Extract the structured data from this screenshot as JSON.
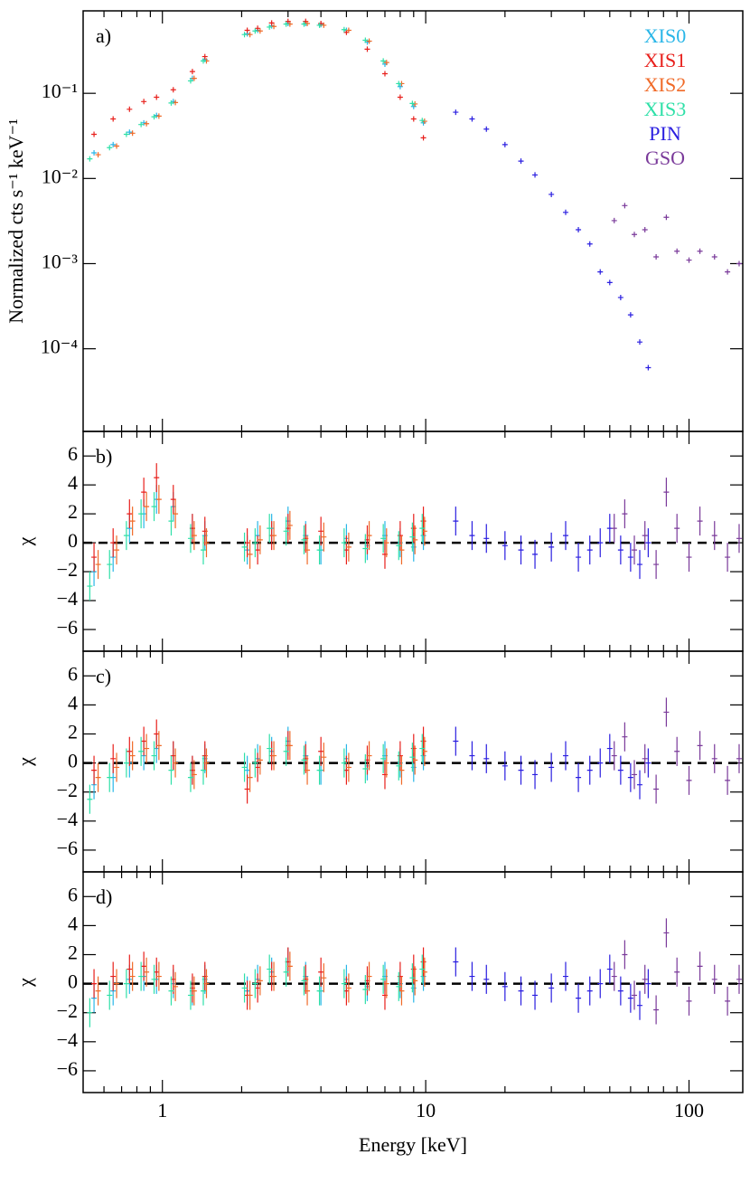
{
  "chart_data": {
    "type": "scatter",
    "xlabel": "Energy [keV]",
    "xlog": true,
    "xlim": [
      0.5,
      160
    ],
    "xticks": [
      1,
      10,
      100
    ],
    "xminor_ticks": [
      0.6,
      0.7,
      0.8,
      0.9,
      2,
      3,
      4,
      5,
      6,
      7,
      8,
      9,
      20,
      30,
      40,
      50,
      60,
      70,
      80,
      90
    ],
    "legend": "upper right",
    "panels": [
      {
        "label": "a)",
        "ylabel": "Normalized cts s⁻¹ keV⁻¹",
        "ylog": true,
        "ylim": [
          1.07e-05,
          0.93
        ],
        "yticks": [
          {
            "value": 0.1,
            "label": "10⁻¹"
          },
          {
            "value": 0.01,
            "label": "10⁻²"
          },
          {
            "value": 0.001,
            "label": "10⁻³"
          },
          {
            "value": 0.0001,
            "label": "10⁻⁴"
          }
        ]
      },
      {
        "label": "b)",
        "ylabel": "χ",
        "ylim": [
          -7.5,
          7.7
        ],
        "zero_line": true,
        "yticks": [
          {
            "value": -6,
            "label": "−6"
          },
          {
            "value": -4,
            "label": "−4"
          },
          {
            "value": -2,
            "label": "−2"
          },
          0,
          2,
          4,
          6
        ]
      },
      {
        "label": "c)",
        "ylabel": "χ",
        "ylim": [
          -7.5,
          7.7
        ],
        "zero_line": true,
        "yticks": [
          {
            "value": -6,
            "label": "−6"
          },
          {
            "value": -4,
            "label": "−4"
          },
          {
            "value": -2,
            "label": "−2"
          },
          0,
          2,
          4,
          6
        ]
      },
      {
        "label": "d)",
        "ylabel": "χ",
        "ylim": [
          -7.5,
          7.7
        ],
        "zero_line": true,
        "yticks": [
          {
            "value": -6,
            "label": "−6"
          },
          {
            "value": -4,
            "label": "−4"
          },
          {
            "value": -2,
            "label": "−2"
          },
          0,
          2,
          4,
          6
        ]
      }
    ],
    "series": [
      {
        "name": "XIS0",
        "color": "#29b6e8",
        "chi_err": 1,
        "x": [
          0.55,
          0.65,
          0.75,
          0.85,
          0.95,
          1.1,
          1.3,
          1.45,
          2.1,
          2.3,
          2.6,
          3.0,
          3.5,
          4.0,
          5.0,
          6.0,
          7.0,
          8.0,
          9.0,
          9.8
        ],
        "values": [
          0.02,
          0.025,
          0.035,
          0.045,
          0.055,
          0.08,
          0.15,
          0.25,
          0.5,
          0.55,
          0.62,
          0.66,
          0.66,
          0.64,
          0.55,
          0.4,
          0.22,
          0.12,
          0.07,
          0.045
        ],
        "chi": [
          [
            -2,
            -1,
            1,
            2,
            3,
            2.5,
            1,
            0.5,
            -0.5,
            0.5,
            1,
            1.5,
            0.5,
            -0.5,
            0.3,
            -0.2,
            0.5,
            0,
            -0.3,
            0.5
          ],
          [
            -1.5,
            -1,
            0,
            0.5,
            1,
            0.5,
            -0.5,
            0.3,
            -0.5,
            0.3,
            0.8,
            1.5,
            0.5,
            -0.5,
            0.3,
            -0.2,
            0.5,
            0,
            -0.3,
            0.5
          ],
          [
            -1,
            -0.5,
            0.3,
            0.5,
            0.3,
            0,
            -0.5,
            0.3,
            -0.5,
            0.3,
            0.8,
            1.5,
            0.5,
            -0.5,
            0.3,
            -0.2,
            0.5,
            0,
            -0.3,
            0.5
          ]
        ]
      },
      {
        "name": "XIS1",
        "color": "#e8201c",
        "chi_err": 1,
        "x": [
          0.55,
          0.65,
          0.75,
          0.85,
          0.95,
          1.1,
          1.3,
          1.45,
          2.1,
          2.3,
          2.6,
          3.0,
          3.5,
          4.0,
          5.0,
          6.0,
          7.0,
          8.0,
          9.0,
          9.8
        ],
        "values": [
          0.033,
          0.05,
          0.065,
          0.08,
          0.09,
          0.11,
          0.18,
          0.27,
          0.55,
          0.58,
          0.67,
          0.7,
          0.7,
          0.66,
          0.52,
          0.33,
          0.17,
          0.09,
          0.05,
          0.03
        ],
        "chi": [
          [
            -1,
            0,
            2,
            3.5,
            4.5,
            3,
            1,
            0.8,
            0,
            -0.5,
            0.5,
            1,
            0.3,
            0.8,
            -0.5,
            0.2,
            -0.8,
            0.5,
            1,
            1.5
          ],
          [
            -0.5,
            0.3,
            0.8,
            1.5,
            2,
            0.5,
            -0.5,
            0.5,
            -1.8,
            -0.3,
            0.5,
            1.2,
            0.3,
            0.8,
            -0.5,
            0.2,
            -0.8,
            0.5,
            1,
            1.5
          ],
          [
            0,
            0.5,
            1,
            1.2,
            0.8,
            0.3,
            -0.3,
            0.5,
            -0.8,
            -0.3,
            0.5,
            1.5,
            0.3,
            0.8,
            -0.5,
            0.2,
            -0.8,
            0.5,
            1,
            1.5
          ]
        ]
      },
      {
        "name": "XIS2",
        "color": "#f06a28",
        "chi_err": 1,
        "x": [
          0.57,
          0.67,
          0.77,
          0.87,
          0.97,
          1.12,
          1.32,
          1.47,
          2.15,
          2.35,
          2.65,
          3.05,
          3.55,
          4.1,
          5.1,
          6.1,
          7.1,
          8.1,
          9.1,
          9.9
        ],
        "values": [
          0.019,
          0.024,
          0.034,
          0.044,
          0.054,
          0.078,
          0.15,
          0.24,
          0.49,
          0.54,
          0.61,
          0.65,
          0.66,
          0.63,
          0.55,
          0.41,
          0.23,
          0.13,
          0.075,
          0.047
        ],
        "chi": [
          [
            -1.5,
            -0.5,
            1.5,
            2.5,
            3,
            2,
            0.5,
            0,
            -0.8,
            0.2,
            0.5,
            1.2,
            -0.5,
            0.4,
            -0.3,
            0.5,
            0,
            -0.5,
            0.2,
            0.8
          ],
          [
            -1,
            -0.3,
            0.5,
            1,
            1.2,
            0,
            -0.8,
            0,
            -1,
            0.2,
            0.5,
            1.2,
            -0.5,
            0.4,
            -0.3,
            0.5,
            0,
            -0.5,
            0.2,
            0.8
          ],
          [
            -0.5,
            0,
            0.5,
            0.8,
            0.5,
            -0.2,
            -0.5,
            0,
            -0.8,
            0.2,
            0.5,
            1.2,
            -0.5,
            0.4,
            -0.3,
            0.5,
            0,
            -0.5,
            0.2,
            0.8
          ]
        ]
      },
      {
        "name": "XIS3",
        "color": "#2ee0a8",
        "chi_err": 1,
        "x": [
          0.53,
          0.63,
          0.73,
          0.83,
          0.93,
          1.08,
          1.28,
          1.43,
          2.05,
          2.25,
          2.55,
          2.95,
          3.45,
          3.95,
          4.9,
          5.9,
          6.9,
          7.9,
          8.9,
          9.7
        ],
        "values": [
          0.017,
          0.023,
          0.033,
          0.043,
          0.053,
          0.077,
          0.14,
          0.24,
          0.49,
          0.54,
          0.6,
          0.65,
          0.65,
          0.63,
          0.56,
          0.42,
          0.24,
          0.13,
          0.076,
          0.048
        ],
        "chi": [
          [
            -3,
            -1.5,
            0.5,
            2,
            2.5,
            1.5,
            0.3,
            -0.5,
            -0.3,
            0,
            1,
            0.8,
            0.2,
            -0.5,
            0,
            -0.4,
            0.3,
            -0.2,
            0.4,
            1
          ],
          [
            -2.5,
            -1,
            0,
            0.8,
            0.5,
            -0.5,
            -1,
            -0.5,
            -0.3,
            0,
            1,
            0.8,
            0.2,
            -0.5,
            0,
            -0.4,
            0.3,
            -0.2,
            0.4,
            1
          ],
          [
            -2,
            -0.8,
            0,
            0.5,
            0.3,
            -0.5,
            -0.8,
            -0.5,
            -0.3,
            0,
            1,
            0.8,
            0.2,
            -0.5,
            0,
            -0.4,
            0.3,
            -0.2,
            0.4,
            1
          ]
        ]
      },
      {
        "name": "PIN",
        "color": "#2a1ee0",
        "chi_err": 1,
        "x": [
          13,
          15,
          17,
          20,
          23,
          26,
          30,
          34,
          38,
          42,
          46,
          50,
          55,
          60,
          65,
          70
        ],
        "values": [
          0.06,
          0.05,
          0.038,
          0.025,
          0.016,
          0.011,
          0.0065,
          0.004,
          0.0025,
          0.0017,
          0.0008,
          0.0006,
          0.0004,
          0.00025,
          0.00012,
          6e-05
        ],
        "chi": [
          [
            1.5,
            0.5,
            0.3,
            -0.2,
            -0.5,
            -0.8,
            -0.3,
            0.5,
            -1,
            -0.5,
            0,
            1,
            -0.5,
            -1,
            -1.5,
            0
          ],
          [
            1.5,
            0.5,
            0.3,
            -0.2,
            -0.5,
            -0.8,
            -0.3,
            0.5,
            -1,
            -0.5,
            0,
            1,
            -0.5,
            -1,
            -1.5,
            0
          ],
          [
            1.5,
            0.5,
            0.3,
            -0.2,
            -0.5,
            -0.8,
            -0.3,
            0.5,
            -1,
            -0.5,
            0,
            1,
            -0.5,
            -1,
            -1.5,
            0
          ]
        ]
      },
      {
        "name": "GSO",
        "color": "#7a3a9a",
        "chi_err": 1,
        "x": [
          52,
          57,
          62,
          68,
          75,
          82,
          90,
          100,
          110,
          125,
          140,
          155
        ],
        "values": [
          0.0032,
          0.0048,
          0.0022,
          0.0025,
          0.0012,
          0.0035,
          0.0014,
          0.0011,
          0.0014,
          0.0012,
          0.0008,
          0.001
        ],
        "chi": [
          [
            1,
            2,
            -0.5,
            0.5,
            -1.5,
            3.5,
            1,
            -1,
            1.5,
            0.5,
            -1,
            0.3
          ],
          [
            0.5,
            1.8,
            -0.8,
            0.3,
            -1.8,
            3.5,
            0.8,
            -1.2,
            1.2,
            0.3,
            -1.2,
            0.3
          ],
          [
            0.5,
            2,
            -0.8,
            0.3,
            -1.8,
            3.5,
            0.8,
            -1.2,
            1.2,
            0.3,
            -1.2,
            0.3
          ]
        ]
      }
    ]
  }
}
